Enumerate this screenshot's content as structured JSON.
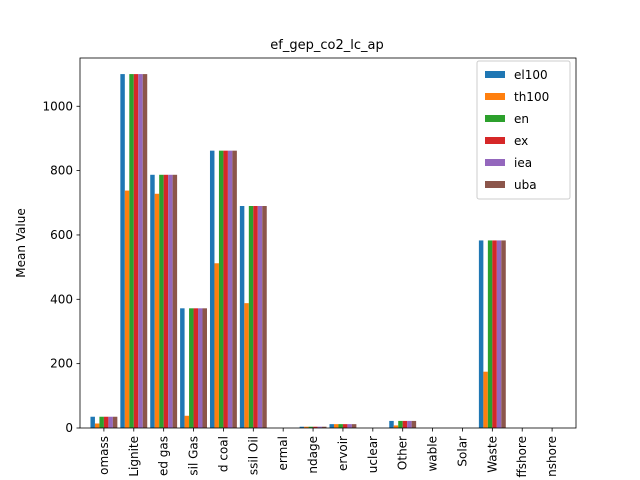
{
  "chart_data": {
    "type": "bar",
    "title": "ef_gep_co2_lc_ap",
    "xlabel": "",
    "ylabel": "Mean Value",
    "ylim": [
      0,
      1150
    ],
    "yticks": [
      0,
      200,
      400,
      600,
      800,
      1000
    ],
    "grid": false,
    "legend_position": "top-right",
    "categories": [
      "Biomass",
      "Lignite",
      "Mixed gas",
      "Fossil Gas",
      "Hard coal",
      "Fossil Oil",
      "Geothermal",
      "Pondage",
      "Reservoir",
      "Nuclear",
      "Other",
      "Other renewable",
      "Solar",
      "Waste",
      "Wind Offshore",
      "Wind Onshore"
    ],
    "category_labels_visible": [
      "omass",
      "Lignite",
      "ed gas",
      "sil Gas",
      "d coal",
      "ssil Oil",
      "ermal",
      "ndage",
      "ervoir",
      "uclear",
      "Other",
      "wable",
      "Solar",
      "Waste",
      "ffshore",
      "nshore"
    ],
    "series": [
      {
        "name": "el100",
        "color": "#1f77b4",
        "values": [
          35,
          1100,
          787,
          372,
          862,
          690,
          0,
          4,
          12,
          0,
          22,
          0,
          0,
          583,
          0,
          0
        ]
      },
      {
        "name": "th100",
        "color": "#ff7f0e",
        "values": [
          14,
          738,
          728,
          38,
          512,
          388,
          0,
          4,
          12,
          0,
          8,
          0,
          0,
          175,
          0,
          0
        ]
      },
      {
        "name": "en",
        "color": "#2ca02c",
        "values": [
          35,
          1100,
          787,
          372,
          862,
          690,
          0,
          4,
          12,
          0,
          22,
          0,
          0,
          583,
          0,
          0
        ]
      },
      {
        "name": "ex",
        "color": "#d62728",
        "values": [
          35,
          1100,
          787,
          372,
          862,
          690,
          0,
          4,
          12,
          0,
          22,
          0,
          0,
          583,
          0,
          0
        ]
      },
      {
        "name": "iea",
        "color": "#9467bd",
        "values": [
          35,
          1100,
          787,
          372,
          862,
          690,
          0,
          4,
          12,
          0,
          22,
          0,
          0,
          583,
          0,
          0
        ]
      },
      {
        "name": "uba",
        "color": "#8c564b",
        "values": [
          35,
          1100,
          787,
          372,
          862,
          690,
          0,
          4,
          12,
          0,
          22,
          0,
          0,
          583,
          0,
          0
        ]
      }
    ]
  }
}
